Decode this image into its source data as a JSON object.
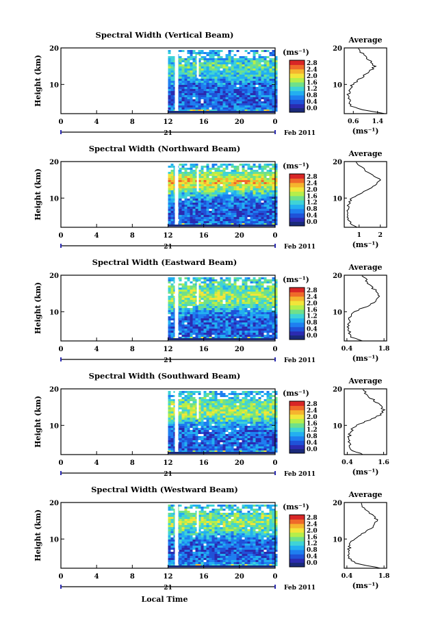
{
  "figure": {
    "xlabel": "Local Time",
    "date_label": "Feb 2011",
    "day_label": "21",
    "ylabel": "Height (km)",
    "colorbar_unit": "(ms⁻¹)",
    "colorbar_ticks": [
      "0.0",
      "0.4",
      "0.8",
      "1.2",
      "1.6",
      "2.0",
      "2.4",
      "2.8"
    ],
    "avg_title": "Average",
    "avg_xlabel": "(ms⁻¹)",
    "colors": {
      "cmap": [
        "#2b2bb0",
        "#1f52d8",
        "#1e7ff0",
        "#23aff0",
        "#3fd3d6",
        "#6fe08a",
        "#b6ee4a",
        "#f2e53a",
        "#f5b42e",
        "#ef6a2a",
        "#d82626"
      ],
      "bottom_band": "#1a2a7a"
    }
  },
  "chart_data": [
    {
      "type": "heatmap",
      "title": "Spectral Width (Vertical Beam)",
      "xlabel": "",
      "ylabel": "Height (km)",
      "x_ticks": [
        "0",
        "4",
        "8",
        "12",
        "16",
        "20",
        "0"
      ],
      "y_ticks": [
        "10",
        "20"
      ],
      "xlim": [
        0,
        24
      ],
      "ylim": [
        2,
        20
      ],
      "colorbar": {
        "label": "(ms⁻¹)",
        "range": [
          0,
          2.8
        ]
      },
      "data_start_hour": 12,
      "heights_km": [
        2,
        3,
        4,
        6,
        8,
        9,
        10,
        11,
        12,
        13,
        14,
        15,
        16,
        17,
        18,
        19,
        20
      ],
      "mean_profile_ms": [
        1.6,
        0.9,
        0.5,
        0.45,
        0.45,
        0.5,
        0.55,
        0.75,
        0.9,
        1.05,
        1.2,
        1.3,
        1.2,
        1.05,
        0.95,
        0.85,
        0.8
      ],
      "average": {
        "title": "Average",
        "xlabel": "(ms⁻¹)",
        "x_ticks": [
          "0.6",
          "1.4"
        ],
        "xlim": [
          0.3,
          1.7
        ],
        "y_ticks": [
          "10",
          "20"
        ]
      }
    },
    {
      "type": "heatmap",
      "title": "Spectral Width (Northward Beam)",
      "xlabel": "",
      "ylabel": "Height (km)",
      "x_ticks": [
        "0",
        "4",
        "8",
        "12",
        "16",
        "20",
        "0"
      ],
      "y_ticks": [
        "10",
        "20"
      ],
      "xlim": [
        0,
        24
      ],
      "ylim": [
        2,
        20
      ],
      "colorbar": {
        "label": "(ms⁻¹)",
        "range": [
          0,
          2.8
        ]
      },
      "data_start_hour": 12,
      "heights_km": [
        2,
        3,
        4,
        6,
        8,
        9,
        10,
        11,
        12,
        13,
        14,
        15,
        16,
        17,
        18,
        19,
        20
      ],
      "mean_profile_ms": [
        0.9,
        0.6,
        0.5,
        0.45,
        0.5,
        0.55,
        0.65,
        1.0,
        1.3,
        1.6,
        1.85,
        2.0,
        1.75,
        1.45,
        1.2,
        1.0,
        0.9
      ],
      "average": {
        "title": "Average",
        "xlabel": "(ms⁻¹)",
        "x_ticks": [
          "1",
          "2"
        ],
        "xlim": [
          0.3,
          2.3
        ],
        "y_ticks": [
          "10",
          "20"
        ]
      }
    },
    {
      "type": "heatmap",
      "title": "Spectral Width (Eastward Beam)",
      "xlabel": "",
      "ylabel": "Height (km)",
      "x_ticks": [
        "0",
        "4",
        "8",
        "12",
        "16",
        "20",
        "0"
      ],
      "y_ticks": [
        "10",
        "20"
      ],
      "xlim": [
        0,
        24
      ],
      "ylim": [
        2,
        20
      ],
      "colorbar": {
        "label": "(ms⁻¹)",
        "range": [
          0,
          2.8
        ]
      },
      "data_start_hour": 12,
      "heights_km": [
        2,
        3,
        4,
        6,
        8,
        9,
        10,
        11,
        12,
        13,
        14,
        15,
        16,
        17,
        18,
        19,
        20
      ],
      "mean_profile_ms": [
        0.95,
        0.6,
        0.5,
        0.45,
        0.5,
        0.55,
        0.7,
        1.0,
        1.3,
        1.5,
        1.6,
        1.55,
        1.45,
        1.3,
        1.2,
        1.1,
        1.0
      ],
      "average": {
        "title": "Average",
        "xlabel": "(ms⁻¹)",
        "x_ticks": [
          "0.4",
          "1.8"
        ],
        "xlim": [
          0.3,
          1.9
        ],
        "y_ticks": [
          "10",
          "20"
        ]
      }
    },
    {
      "type": "heatmap",
      "title": "Spectral Width (Southward Beam)",
      "xlabel": "",
      "ylabel": "Height (km)",
      "x_ticks": [
        "0",
        "4",
        "8",
        "12",
        "16",
        "20",
        "0"
      ],
      "y_ticks": [
        "10",
        "20"
      ],
      "xlim": [
        0,
        24
      ],
      "ylim": [
        2,
        20
      ],
      "colorbar": {
        "label": "(ms⁻¹)",
        "range": [
          0,
          2.8
        ]
      },
      "data_start_hour": 12,
      "heights_km": [
        2,
        3,
        4,
        6,
        8,
        9,
        10,
        11,
        12,
        13,
        14,
        15,
        16,
        17,
        18,
        19,
        20
      ],
      "mean_profile_ms": [
        0.9,
        0.6,
        0.5,
        0.45,
        0.5,
        0.55,
        0.7,
        1.0,
        1.3,
        1.5,
        1.6,
        1.55,
        1.4,
        1.25,
        1.1,
        1.0,
        0.95
      ],
      "average": {
        "title": "Average",
        "xlabel": "(ms⁻¹)",
        "x_ticks": [
          "0.4",
          "1.6"
        ],
        "xlim": [
          0.3,
          1.7
        ],
        "y_ticks": [
          "10",
          "20"
        ]
      }
    },
    {
      "type": "heatmap",
      "title": "Spectral Width (Westward Beam)",
      "xlabel": "Local Time",
      "ylabel": "Height (km)",
      "x_ticks": [
        "0",
        "4",
        "8",
        "12",
        "16",
        "20",
        "0"
      ],
      "y_ticks": [
        "10",
        "20"
      ],
      "xlim": [
        0,
        24
      ],
      "ylim": [
        2,
        20
      ],
      "colorbar": {
        "label": "(ms⁻¹)",
        "range": [
          0,
          2.8
        ]
      },
      "data_start_hour": 12,
      "heights_km": [
        2,
        3,
        4,
        6,
        8,
        9,
        10,
        11,
        12,
        13,
        14,
        15,
        16,
        17,
        18,
        19,
        20
      ],
      "mean_profile_ms": [
        1.7,
        0.9,
        0.55,
        0.45,
        0.5,
        0.55,
        0.65,
        0.85,
        1.1,
        1.3,
        1.45,
        1.55,
        1.45,
        1.3,
        1.15,
        1.0,
        0.9
      ],
      "average": {
        "title": "Average",
        "xlabel": "(ms⁻¹)",
        "x_ticks": [
          "0.4",
          "1.8"
        ],
        "xlim": [
          0.3,
          1.9
        ],
        "y_ticks": [
          "10",
          "20"
        ]
      }
    }
  ]
}
